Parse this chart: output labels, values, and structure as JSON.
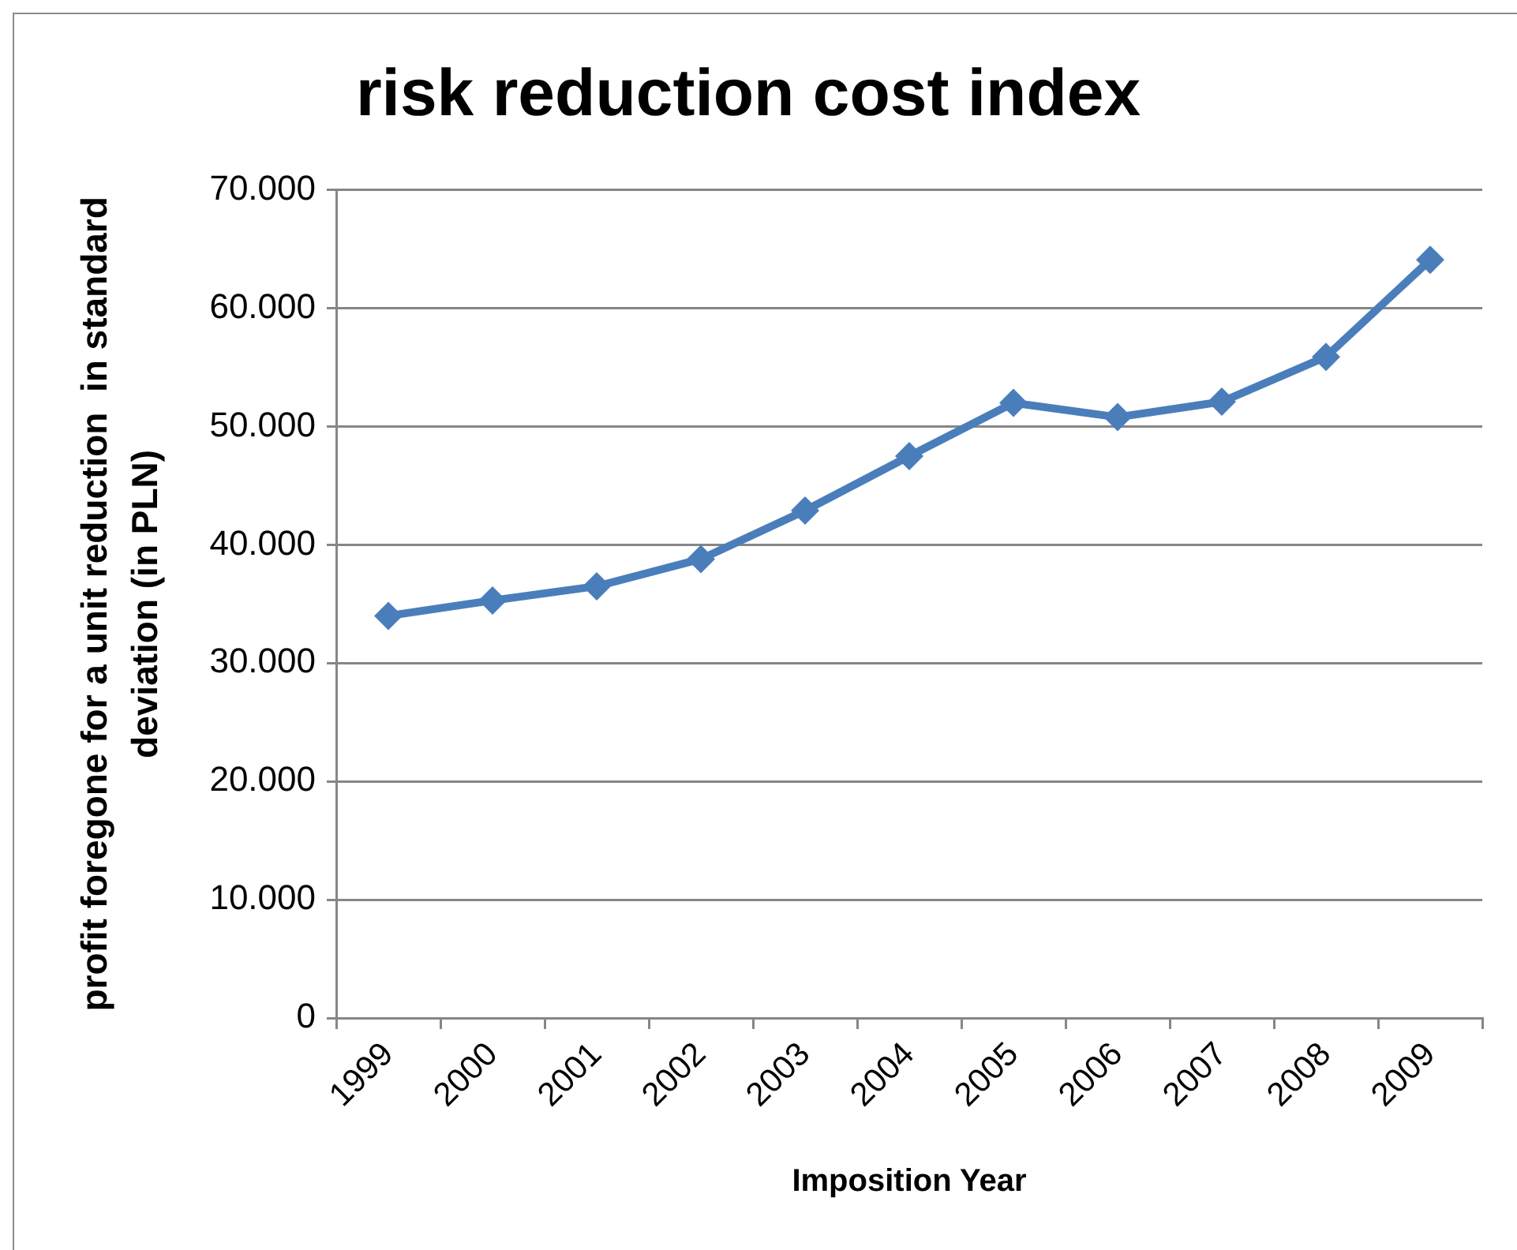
{
  "chart_data": {
    "type": "line",
    "title": "risk reduction cost index",
    "xlabel": "Imposition Year",
    "ylabel": "profit foregone for a unit reduction  in standard deviation (in PLN)",
    "categories": [
      "1999",
      "2000",
      "2001",
      "2002",
      "2003",
      "2004",
      "2005",
      "2006",
      "2007",
      "2008",
      "2009"
    ],
    "series": [
      {
        "color": "#4a7ebb",
        "values": [
          34000,
          35300,
          36500,
          38800,
          42900,
          47500,
          52000,
          50800,
          52100,
          55900,
          64100
        ]
      }
    ],
    "ylim": [
      0,
      70000
    ],
    "yticks": [
      0,
      {
        "value": 10000,
        "label": "10.000"
      },
      {
        "value": 20000,
        "label": "20.000"
      },
      {
        "value": 30000,
        "label": "30.000"
      },
      {
        "value": 40000,
        "label": "40.000"
      },
      {
        "value": 50000,
        "label": "50.000"
      },
      {
        "value": 60000,
        "label": "60.000"
      },
      {
        "value": 70000,
        "label": "70.000"
      }
    ],
    "grid": "y",
    "marker": "diamond",
    "line_style": "solid"
  }
}
